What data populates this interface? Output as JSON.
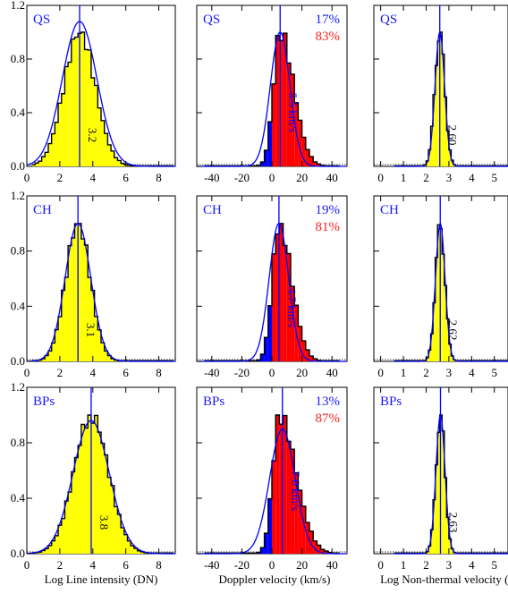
{
  "figure": {
    "column_xlabels": [
      "Log Line intensity (DN)",
      "Doppler velocity (km/s)",
      "Log Non-thermal velocity (k"
    ],
    "row_labels": [
      "QS",
      "CH",
      "BPs"
    ],
    "y_ticks": [
      "0.0",
      "0.4",
      "0.8",
      "1.2"
    ],
    "colors": {
      "fill_main": "#ffff00",
      "fill_red": "#ff0000",
      "fill_blue": "#0000ff",
      "fit_line": "#0000ff",
      "label_blue": "#1a1aff",
      "label_red": "#ff2020",
      "outline": "#000000"
    }
  },
  "chart_data": [
    {
      "type": "histogram",
      "panel": "QS intensity",
      "title": "QS",
      "xlabel": "",
      "xlim": [
        0,
        9
      ],
      "ylim": [
        0,
        1.2
      ],
      "xticks": [
        0,
        2,
        4,
        6,
        8
      ],
      "yticks": [
        0.0,
        0.4,
        0.8,
        1.2
      ],
      "annotation": "3.2",
      "peak": 3.2,
      "sigma": 0.95,
      "fit_peak": 1.08,
      "fit_sigma": 1.05,
      "bins": [
        0.2,
        9.0
      ],
      "bin_width": 0.2
    },
    {
      "type": "histogram",
      "panel": "QS doppler",
      "title": "QS",
      "xlabel": "",
      "xlim": [
        -50,
        50
      ],
      "ylim": [
        0,
        1.2
      ],
      "xticks": [
        -40,
        -20,
        0,
        20,
        40
      ],
      "annotation": "5.5 km/s",
      "peak": 5.5,
      "blue_percent": "17%",
      "red_percent": "83%",
      "sigma_blue": 4.5,
      "sigma_red": 9.0,
      "fit_sigma": 6.5
    },
    {
      "type": "histogram",
      "panel": "QS nonthermal",
      "title": "QS",
      "xlabel": "",
      "xlim": [
        -0.3,
        5.6
      ],
      "ylim": [
        0,
        1.2
      ],
      "xticks": [
        0,
        1,
        2,
        3,
        4,
        5
      ],
      "annotation": "2.60",
      "peak": 2.6,
      "sigma": 0.22,
      "fit_sigma": 0.21
    },
    {
      "type": "histogram",
      "panel": "CH intensity",
      "title": "CH",
      "xlim": [
        0,
        9
      ],
      "ylim": [
        0,
        1.2
      ],
      "xticks": [
        0,
        2,
        4,
        6,
        8
      ],
      "annotation": "3.1",
      "peak": 3.1,
      "sigma": 0.75,
      "fit_peak": 1.0,
      "fit_sigma": 0.78
    },
    {
      "type": "histogram",
      "panel": "CH doppler",
      "title": "CH",
      "xlim": [
        -50,
        50
      ],
      "ylim": [
        0,
        1.2
      ],
      "xticks": [
        -40,
        -20,
        0,
        20,
        40
      ],
      "annotation": "4.7 km/s",
      "peak": 4.7,
      "blue_percent": "19%",
      "red_percent": "81%",
      "sigma_blue": 4.5,
      "sigma_red": 8.5,
      "fit_sigma": 6.5
    },
    {
      "type": "histogram",
      "panel": "CH nonthermal",
      "title": "CH",
      "xlim": [
        -0.3,
        5.6
      ],
      "ylim": [
        0,
        1.2
      ],
      "xticks": [
        0,
        1,
        2,
        3,
        4,
        5
      ],
      "annotation": "2.62",
      "peak": 2.62,
      "sigma": 0.21,
      "fit_sigma": 0.21
    },
    {
      "type": "histogram",
      "panel": "BPs intensity",
      "title": "BPs",
      "xlim": [
        0,
        9
      ],
      "ylim": [
        0,
        1.2
      ],
      "xticks": [
        0,
        2,
        4,
        6,
        8
      ],
      "annotation": "3.8",
      "peak": 3.9,
      "sigma": 1.05,
      "fit_peak": 0.96,
      "fit_sigma": 1.1
    },
    {
      "type": "histogram",
      "panel": "BPs doppler",
      "title": "BPs",
      "xlim": [
        -50,
        50
      ],
      "ylim": [
        0,
        1.2
      ],
      "xticks": [
        -40,
        -20,
        0,
        20,
        40
      ],
      "annotation": "7.0 km/s",
      "peak": 5.0,
      "blue_percent": "13%",
      "red_percent": "87%",
      "sigma_blue": 4.5,
      "sigma_red": 11.0,
      "fit_peak": 0.9,
      "fit_center": 7.0,
      "fit_sigma": 8.5
    },
    {
      "type": "histogram",
      "panel": "BPs nonthermal",
      "title": "BPs",
      "xlim": [
        -0.3,
        5.6
      ],
      "ylim": [
        0,
        1.2
      ],
      "xticks": [
        0,
        1,
        2,
        3,
        4,
        5
      ],
      "annotation": "2.63",
      "peak": 2.63,
      "sigma": 0.2,
      "fit_sigma": 0.2
    }
  ]
}
